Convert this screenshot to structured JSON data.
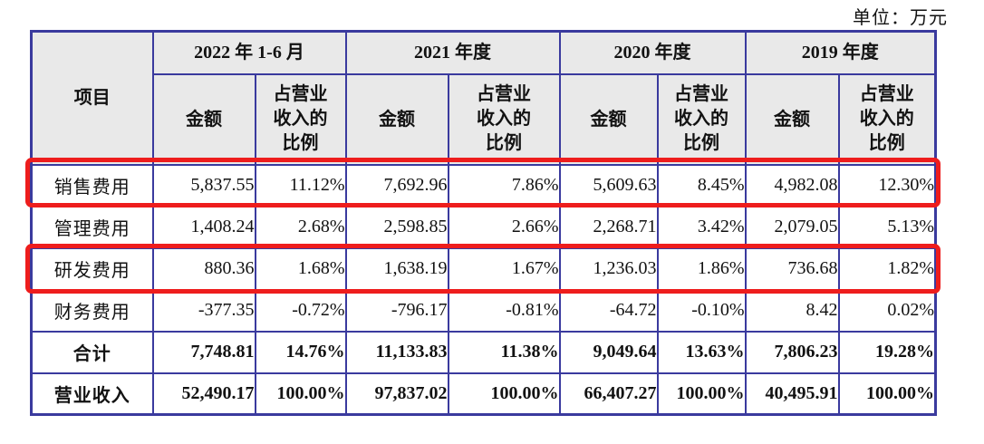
{
  "unit_label": "单位：万元",
  "colors": {
    "table_border": "#3a3a9e",
    "highlight_red": "#ee1d1d",
    "header_background": "#e9e9e9"
  },
  "table": {
    "item_header": "项目",
    "period_groups": [
      {
        "label": "2022 年 1-6 月"
      },
      {
        "label": "2021 年度"
      },
      {
        "label": "2020 年度"
      },
      {
        "label": "2019 年度"
      }
    ],
    "sub_headers": {
      "amount": "金额",
      "ratio": "占营业收入的比例"
    },
    "rows": [
      {
        "label": "销售费用",
        "highlighted": true,
        "bold": false,
        "values": [
          "5,837.55",
          "11.12%",
          "7,692.96",
          "7.86%",
          "5,609.63",
          "8.45%",
          "4,982.08",
          "12.30%"
        ]
      },
      {
        "label": "管理费用",
        "highlighted": false,
        "bold": false,
        "values": [
          "1,408.24",
          "2.68%",
          "2,598.85",
          "2.66%",
          "2,268.71",
          "3.42%",
          "2,079.05",
          "5.13%"
        ]
      },
      {
        "label": "研发费用",
        "highlighted": true,
        "bold": false,
        "values": [
          "880.36",
          "1.68%",
          "1,638.19",
          "1.67%",
          "1,236.03",
          "1.86%",
          "736.68",
          "1.82%"
        ]
      },
      {
        "label": "财务费用",
        "highlighted": false,
        "bold": false,
        "values": [
          "-377.35",
          "-0.72%",
          "-796.17",
          "-0.81%",
          "-64.72",
          "-0.10%",
          "8.42",
          "0.02%"
        ]
      },
      {
        "label": "合计",
        "highlighted": false,
        "bold": true,
        "values": [
          "7,748.81",
          "14.76%",
          "11,133.83",
          "11.38%",
          "9,049.64",
          "13.63%",
          "7,806.23",
          "19.28%"
        ]
      },
      {
        "label": "营业收入",
        "highlighted": false,
        "bold": true,
        "values": [
          "52,490.17",
          "100.00%",
          "97,837.02",
          "100.00%",
          "66,407.27",
          "100.00%",
          "40,495.91",
          "100.00%"
        ]
      }
    ]
  }
}
